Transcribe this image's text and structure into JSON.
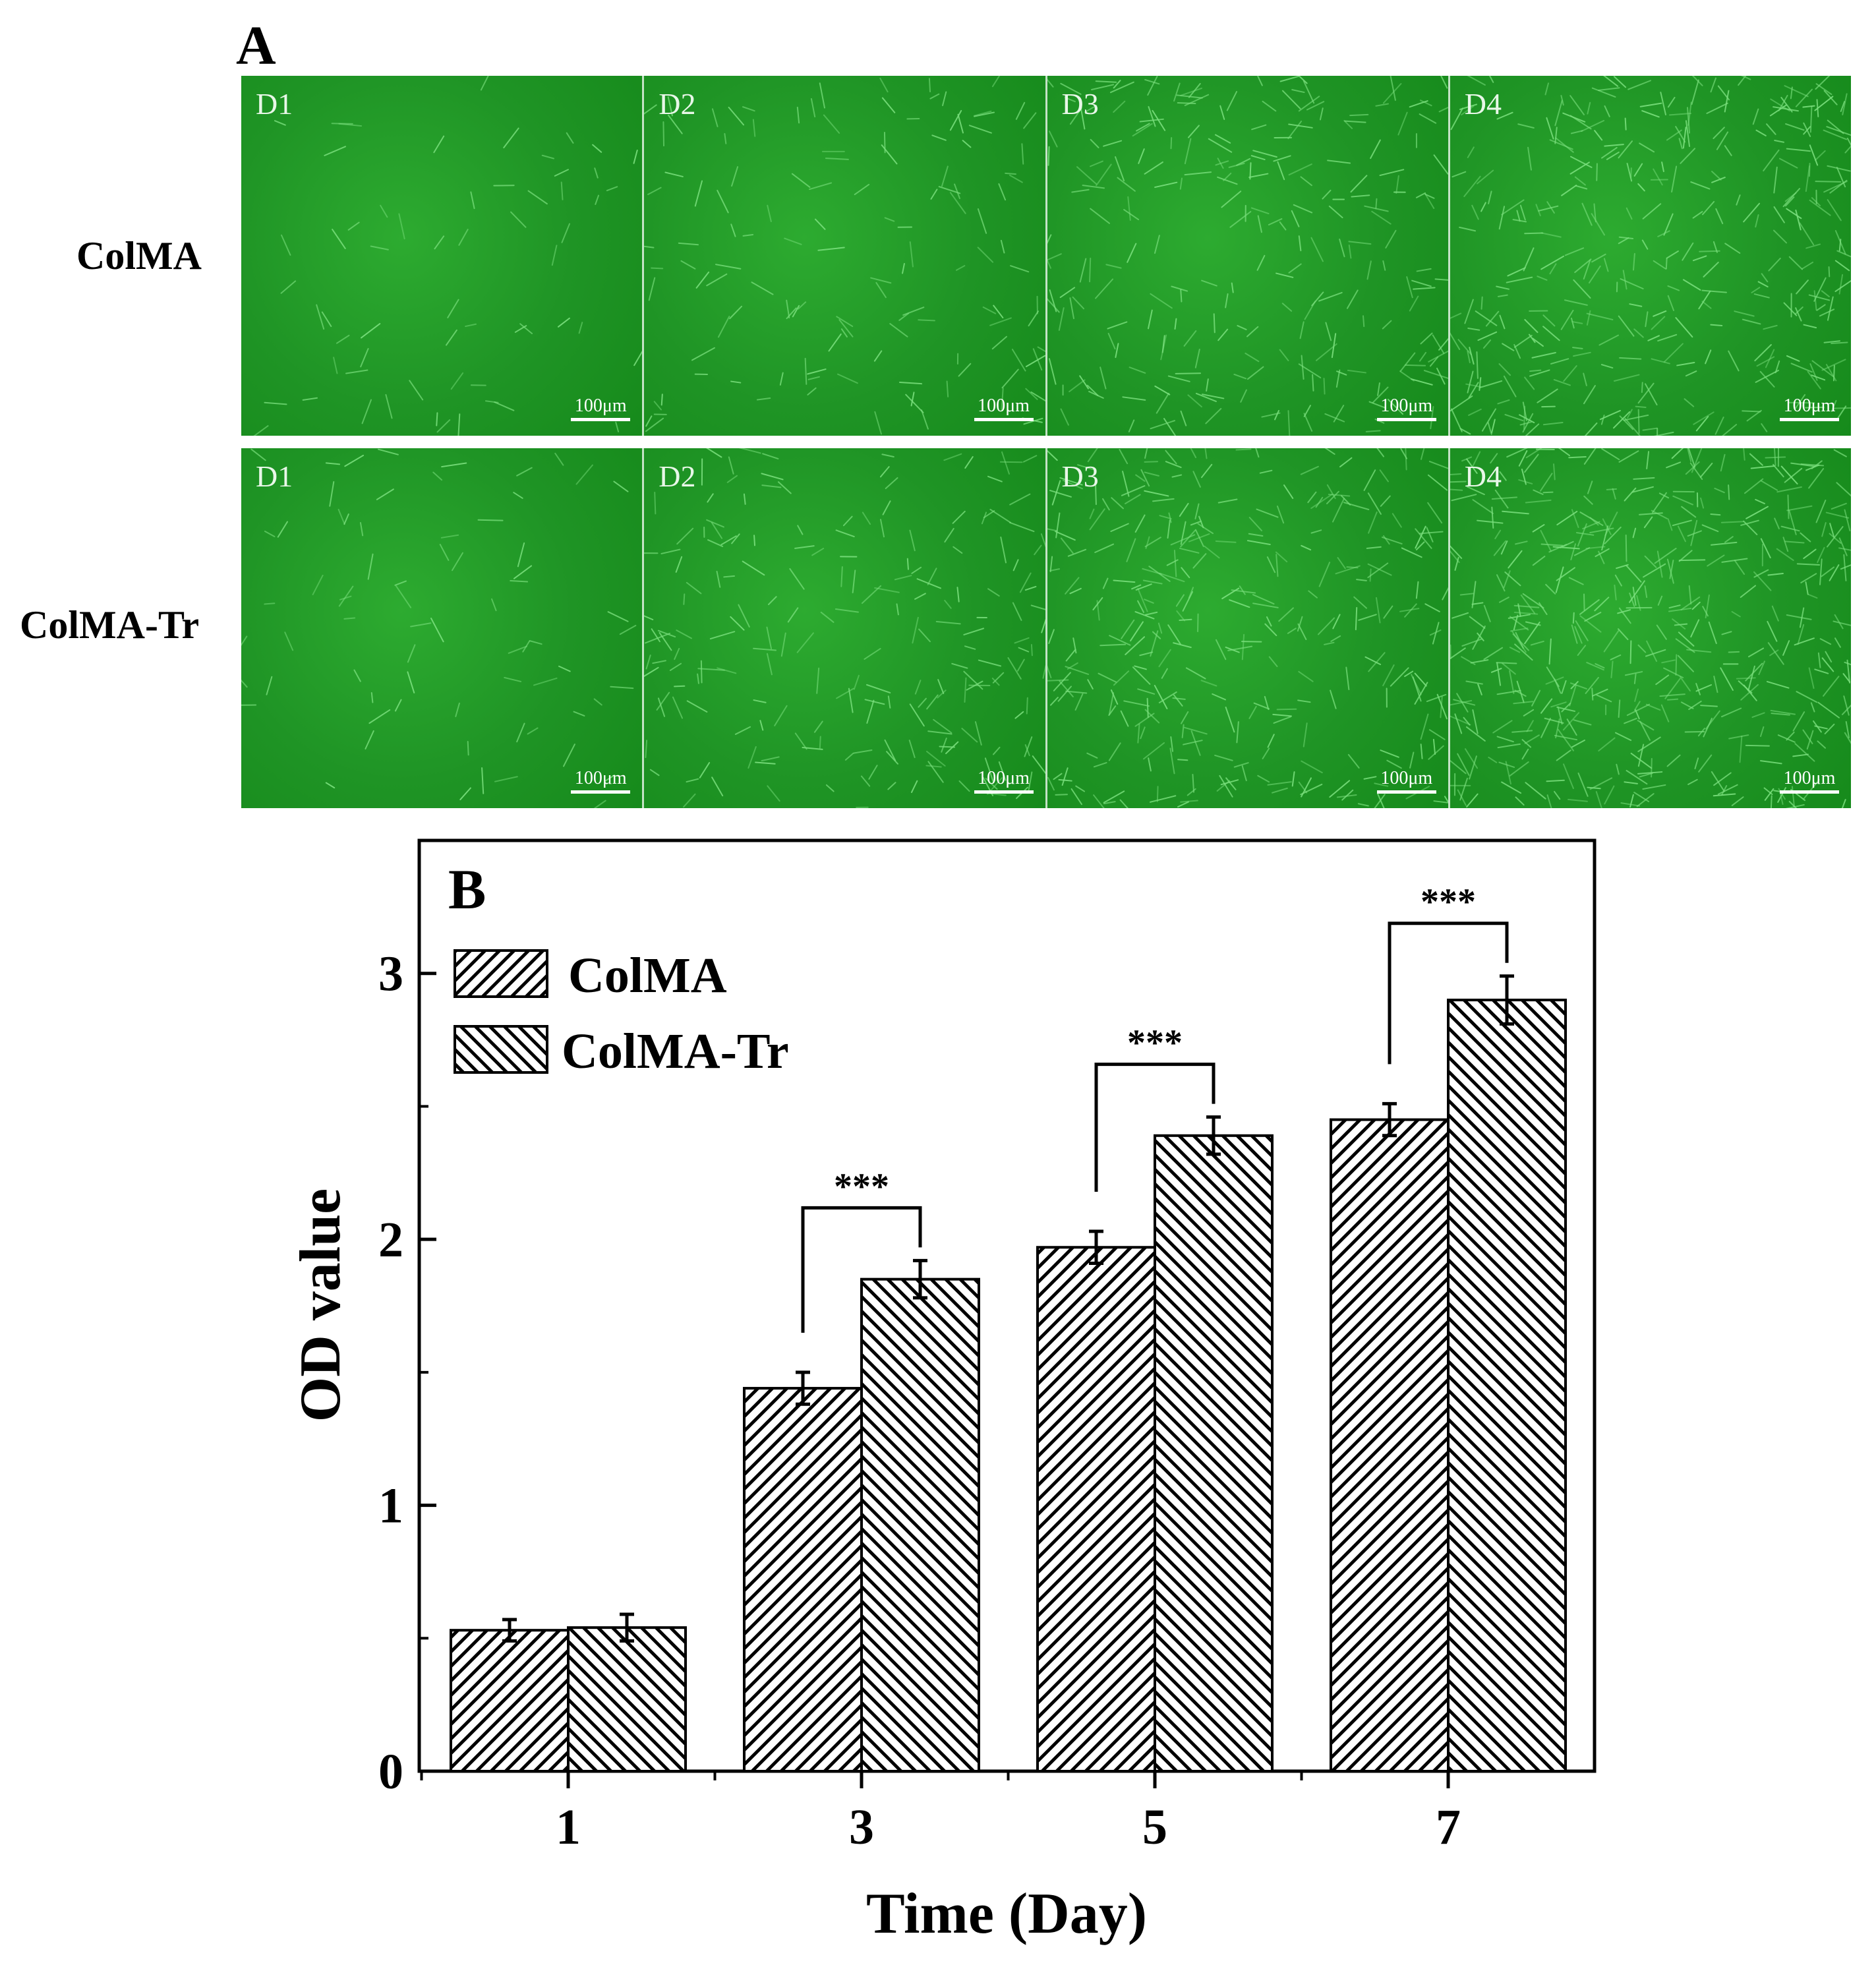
{
  "panel_a": {
    "letter": "A",
    "rows": [
      {
        "label": "ColMA",
        "tiles": [
          {
            "label": "D1",
            "scale": "100μm",
            "density": 60
          },
          {
            "label": "D2",
            "scale": "100μm",
            "density": 130
          },
          {
            "label": "D3",
            "scale": "100μm",
            "density": 240
          },
          {
            "label": "D4",
            "scale": "100μm",
            "density": 360
          }
        ]
      },
      {
        "label": "ColMA-Tr",
        "tiles": [
          {
            "label": "D1",
            "scale": "100μm",
            "density": 70
          },
          {
            "label": "D2",
            "scale": "100μm",
            "density": 200
          },
          {
            "label": "D3",
            "scale": "100μm",
            "density": 320
          },
          {
            "label": "D4",
            "scale": "100μm",
            "density": 480
          }
        ]
      }
    ],
    "colors": {
      "background": "#1f9425",
      "cell": "#7be07e"
    }
  },
  "chart_data": {
    "panel_letter": "B",
    "type": "bar",
    "categories": [
      "1",
      "3",
      "5",
      "7"
    ],
    "series": [
      {
        "name": "ColMA",
        "values": [
          0.53,
          1.44,
          1.97,
          2.45
        ],
        "errors": [
          0.04,
          0.06,
          0.06,
          0.06
        ],
        "pattern": "hatch-forward"
      },
      {
        "name": "ColMA-Tr",
        "values": [
          0.54,
          1.85,
          2.39,
          2.9
        ],
        "errors": [
          0.05,
          0.07,
          0.07,
          0.09
        ],
        "pattern": "hatch-backward"
      }
    ],
    "significance": [
      {
        "category": "3",
        "label": "***"
      },
      {
        "category": "5",
        "label": "***"
      },
      {
        "category": "7",
        "label": "***"
      }
    ],
    "xlabel": "Time (Day)",
    "ylabel": "OD value",
    "ylim": [
      0,
      3.5
    ],
    "yticks": [
      "0",
      "1",
      "2",
      "3"
    ],
    "grid": false,
    "legend_position": "top-left",
    "colors": {
      "bar_fill": "#ffffff",
      "hatch": "#000000",
      "axis": "#000000"
    }
  }
}
